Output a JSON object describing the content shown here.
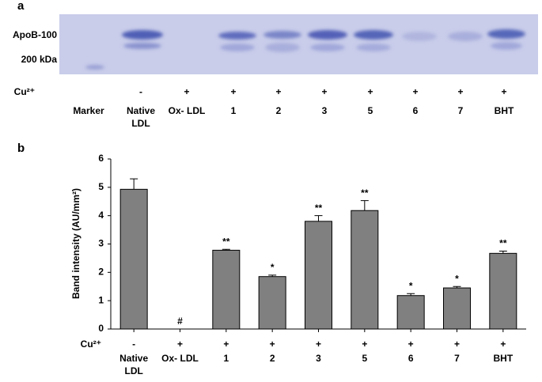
{
  "panel_a": {
    "label": "a",
    "band_labels": [
      "ApoB-100",
      "200 kDa"
    ],
    "cu_label": "Cu²⁺",
    "signs": [
      "-",
      "+",
      "+",
      "+",
      "+",
      "+",
      "+",
      "+",
      "+"
    ],
    "lanes": [
      "Marker",
      "Native LDL",
      "Ox- LDL",
      "1",
      "2",
      "3",
      "5",
      "6",
      "7",
      "BHT"
    ]
  },
  "chart_data": {
    "type": "bar",
    "label": "b",
    "y_label": "Band intensity (AU/mm²)",
    "cu_label": "Cu²⁺",
    "cu_signs": [
      "-",
      "+",
      "+",
      "+",
      "+",
      "+",
      "+",
      "+",
      "+"
    ],
    "categories": [
      "Native LDL",
      "Ox- LDL",
      "1",
      "2",
      "3",
      "5",
      "6",
      "7",
      "BHT"
    ],
    "values": [
      4.93,
      0,
      2.78,
      1.85,
      3.8,
      4.18,
      1.18,
      1.45,
      2.67
    ],
    "errors": [
      0.37,
      null,
      0.03,
      0.05,
      0.2,
      0.35,
      0.07,
      0.05,
      0.08
    ],
    "annotations": [
      null,
      "#",
      "**",
      "*",
      "**",
      "**",
      "*",
      "*",
      "**"
    ],
    "color": "#808080",
    "ylim": [
      0,
      6
    ],
    "yticks": [
      0,
      1,
      2,
      3,
      4,
      5,
      6
    ]
  }
}
